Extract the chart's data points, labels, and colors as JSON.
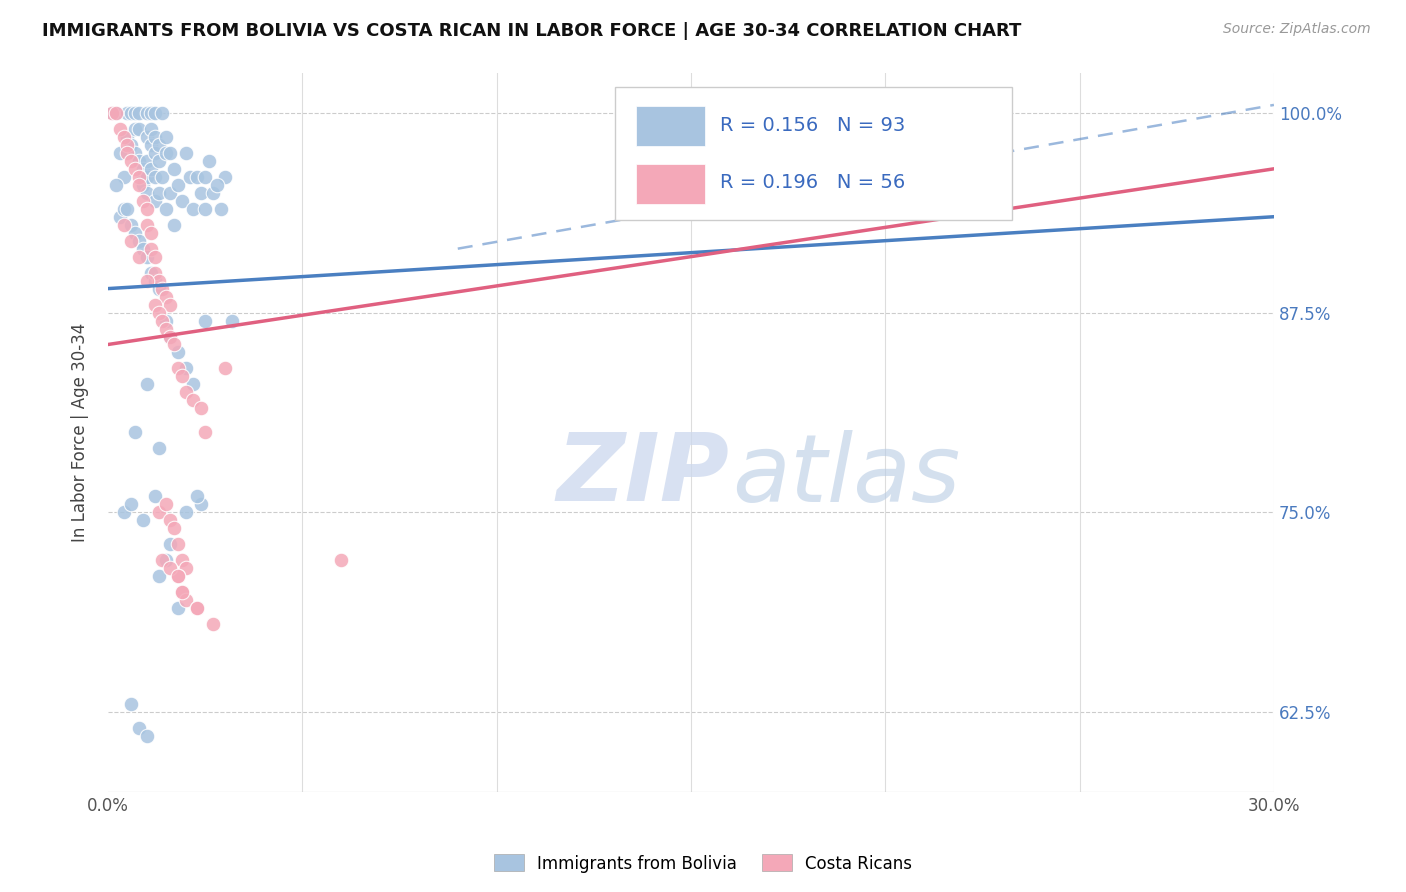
{
  "title": "IMMIGRANTS FROM BOLIVIA VS COSTA RICAN IN LABOR FORCE | AGE 30-34 CORRELATION CHART",
  "source": "Source: ZipAtlas.com",
  "ylabel": "In Labor Force | Age 30-34",
  "xlim": [
    0.0,
    0.3
  ],
  "ylim": [
    0.575,
    1.025
  ],
  "ytick_labels_right": [
    "100.0%",
    "87.5%",
    "75.0%",
    "62.5%"
  ],
  "ytick_vals_right": [
    1.0,
    0.875,
    0.75,
    0.625
  ],
  "bolivia_color": "#a8c4e0",
  "costarica_color": "#f4a8b8",
  "bolivia_line_color": "#4a7fc1",
  "costarica_line_color": "#e06080",
  "R_bolivia": 0.156,
  "N_bolivia": 93,
  "R_costarica": 0.196,
  "N_costarica": 56,
  "legend_label_bolivia": "Immigrants from Bolivia",
  "legend_label_costarica": "Costa Ricans",
  "watermark_zip": "ZIP",
  "watermark_atlas": "atlas",
  "bolivia_trend": [
    0.0,
    0.89,
    0.3,
    0.935
  ],
  "costarica_trend": [
    0.0,
    0.855,
    0.3,
    0.965
  ],
  "bolivia_dash": [
    0.09,
    0.915,
    0.3,
    1.005
  ],
  "bolivia_scatter_x": [
    0.001,
    0.002,
    0.003,
    0.004,
    0.005,
    0.005,
    0.006,
    0.006,
    0.007,
    0.007,
    0.007,
    0.008,
    0.008,
    0.008,
    0.009,
    0.009,
    0.009,
    0.01,
    0.01,
    0.01,
    0.01,
    0.01,
    0.011,
    0.011,
    0.011,
    0.011,
    0.012,
    0.012,
    0.012,
    0.012,
    0.012,
    0.013,
    0.013,
    0.013,
    0.014,
    0.014,
    0.015,
    0.015,
    0.015,
    0.016,
    0.016,
    0.017,
    0.017,
    0.018,
    0.019,
    0.02,
    0.021,
    0.022,
    0.023,
    0.024,
    0.002,
    0.003,
    0.004,
    0.006,
    0.007,
    0.008,
    0.009,
    0.01,
    0.011,
    0.012,
    0.013,
    0.015,
    0.016,
    0.018,
    0.02,
    0.022,
    0.004,
    0.006,
    0.009,
    0.012,
    0.007,
    0.01,
    0.013,
    0.025,
    0.018,
    0.006,
    0.013,
    0.015,
    0.016,
    0.008,
    0.01,
    0.032,
    0.025,
    0.026,
    0.03,
    0.005,
    0.025,
    0.027,
    0.028,
    0.029,
    0.02,
    0.024,
    0.023
  ],
  "bolivia_scatter_y": [
    1.0,
    1.0,
    0.975,
    0.96,
    1.0,
    0.985,
    1.0,
    0.98,
    1.0,
    0.99,
    0.975,
    1.0,
    0.99,
    0.97,
    0.965,
    0.96,
    0.955,
    1.0,
    0.985,
    0.97,
    0.96,
    0.95,
    1.0,
    0.99,
    0.98,
    0.965,
    1.0,
    0.985,
    0.975,
    0.96,
    0.945,
    0.98,
    0.97,
    0.95,
    1.0,
    0.96,
    0.985,
    0.975,
    0.94,
    0.975,
    0.95,
    0.965,
    0.93,
    0.955,
    0.945,
    0.975,
    0.96,
    0.94,
    0.96,
    0.95,
    0.955,
    0.935,
    0.94,
    0.93,
    0.925,
    0.92,
    0.915,
    0.91,
    0.9,
    0.895,
    0.89,
    0.87,
    0.86,
    0.85,
    0.84,
    0.83,
    0.75,
    0.755,
    0.745,
    0.76,
    0.8,
    0.83,
    0.79,
    0.87,
    0.69,
    0.63,
    0.71,
    0.72,
    0.73,
    0.615,
    0.61,
    0.87,
    0.96,
    0.97,
    0.96,
    0.94,
    0.94,
    0.95,
    0.955,
    0.94,
    0.75,
    0.755,
    0.76
  ],
  "costarica_scatter_x": [
    0.001,
    0.002,
    0.003,
    0.004,
    0.005,
    0.005,
    0.006,
    0.007,
    0.008,
    0.008,
    0.009,
    0.01,
    0.01,
    0.011,
    0.011,
    0.012,
    0.012,
    0.013,
    0.014,
    0.015,
    0.016,
    0.004,
    0.006,
    0.008,
    0.01,
    0.012,
    0.013,
    0.014,
    0.015,
    0.016,
    0.017,
    0.018,
    0.019,
    0.02,
    0.022,
    0.024,
    0.013,
    0.015,
    0.016,
    0.017,
    0.018,
    0.019,
    0.02,
    0.025,
    0.03,
    0.018,
    0.019,
    0.02,
    0.023,
    0.027,
    0.014,
    0.016,
    0.018,
    0.019,
    0.023,
    0.06
  ],
  "costarica_scatter_y": [
    1.0,
    1.0,
    0.99,
    0.985,
    0.98,
    0.975,
    0.97,
    0.965,
    0.96,
    0.955,
    0.945,
    0.94,
    0.93,
    0.925,
    0.915,
    0.91,
    0.9,
    0.895,
    0.89,
    0.885,
    0.88,
    0.93,
    0.92,
    0.91,
    0.895,
    0.88,
    0.875,
    0.87,
    0.865,
    0.86,
    0.855,
    0.84,
    0.835,
    0.825,
    0.82,
    0.815,
    0.75,
    0.755,
    0.745,
    0.74,
    0.73,
    0.72,
    0.715,
    0.8,
    0.84,
    0.71,
    0.7,
    0.695,
    0.69,
    0.68,
    0.72,
    0.715,
    0.71,
    0.7,
    0.69,
    0.72
  ]
}
